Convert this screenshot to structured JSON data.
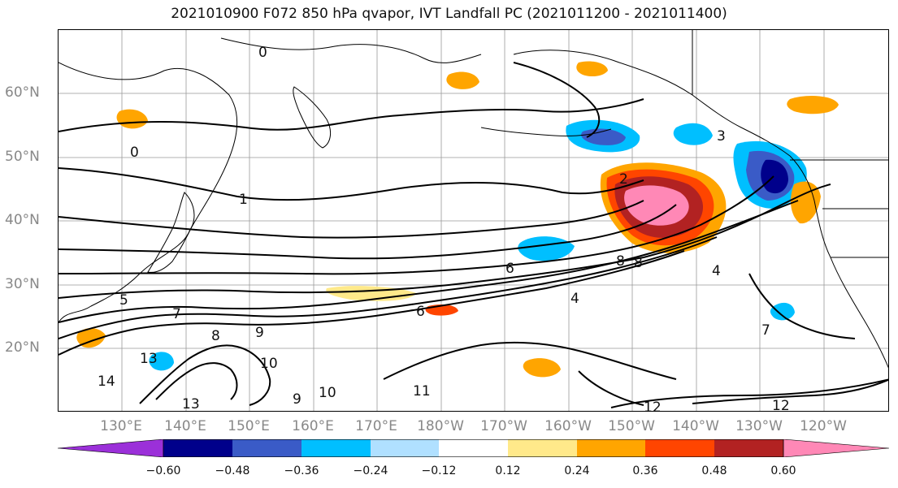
{
  "title": "2021010900 F072 850 hPa qvapor, IVT Landfall PC (2021011200 - 2021011400)",
  "lat_labels": [
    "60°N",
    "50°N",
    "40°N",
    "30°N",
    "20°N"
  ],
  "lon_labels": [
    "130°E",
    "140°E",
    "150°E",
    "160°E",
    "170°E",
    "180°W",
    "170°W",
    "160°W",
    "150°W",
    "140°W",
    "130°W",
    "120°W"
  ],
  "colorbar": {
    "ticks": [
      "−0.60",
      "−0.48",
      "−0.36",
      "−0.24",
      "−0.12",
      "0.12",
      "0.24",
      "0.36",
      "0.48",
      "0.60"
    ],
    "colors": [
      "#9b30d9",
      "#00008b",
      "#3a5bc7",
      "#00bfff",
      "#b0e0ff",
      "#ffffff",
      "#ffe98a",
      "#ffa500",
      "#ff4500",
      "#b22222",
      "#ff88b6"
    ]
  },
  "contour_labels": [
    "0",
    "0",
    "1",
    "2",
    "3",
    "4",
    "4",
    "5",
    "6",
    "6",
    "7",
    "7",
    "8",
    "8",
    "8",
    "9",
    "9",
    "10",
    "10",
    "11",
    "12",
    "12",
    "13",
    "13",
    "14"
  ],
  "colors": {
    "contour": "#000000",
    "grid": "#999999",
    "land_outline": "#000000"
  }
}
